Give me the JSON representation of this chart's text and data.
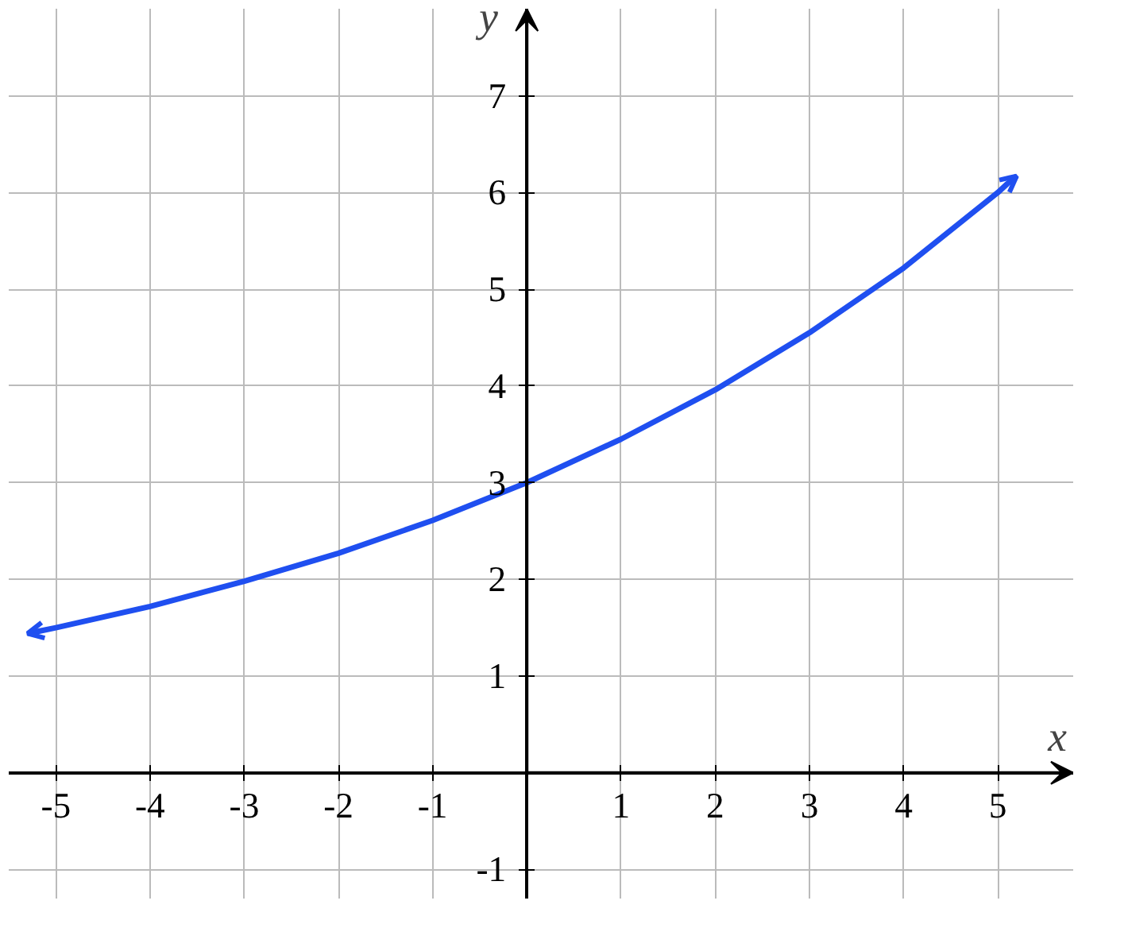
{
  "chart_data": {
    "type": "line",
    "xlabel": "x",
    "ylabel": "y",
    "x": [
      -5.3,
      -5.2,
      -5,
      -4,
      -3,
      -2,
      -1,
      0,
      1,
      2,
      3,
      4,
      5,
      5.1,
      5.2
    ],
    "series": [
      {
        "color": "#1f4ff0",
        "values": [
          1.44,
          1.46,
          1.5,
          1.72,
          1.98,
          2.27,
          2.61,
          3,
          3.45,
          3.96,
          4.55,
          5.22,
          6.0,
          6.09,
          6.17
        ]
      }
    ],
    "xlim": [
      -5.5,
      5.8
    ],
    "ylim": [
      -1.3,
      7.9
    ],
    "xticks": [
      -5,
      -4,
      -3,
      -2,
      -1,
      1,
      2,
      3,
      4,
      5
    ],
    "yticks": [
      -1,
      1,
      2,
      3,
      4,
      5,
      6,
      7
    ],
    "grid": true,
    "marker": "none",
    "line_style": "solid"
  }
}
